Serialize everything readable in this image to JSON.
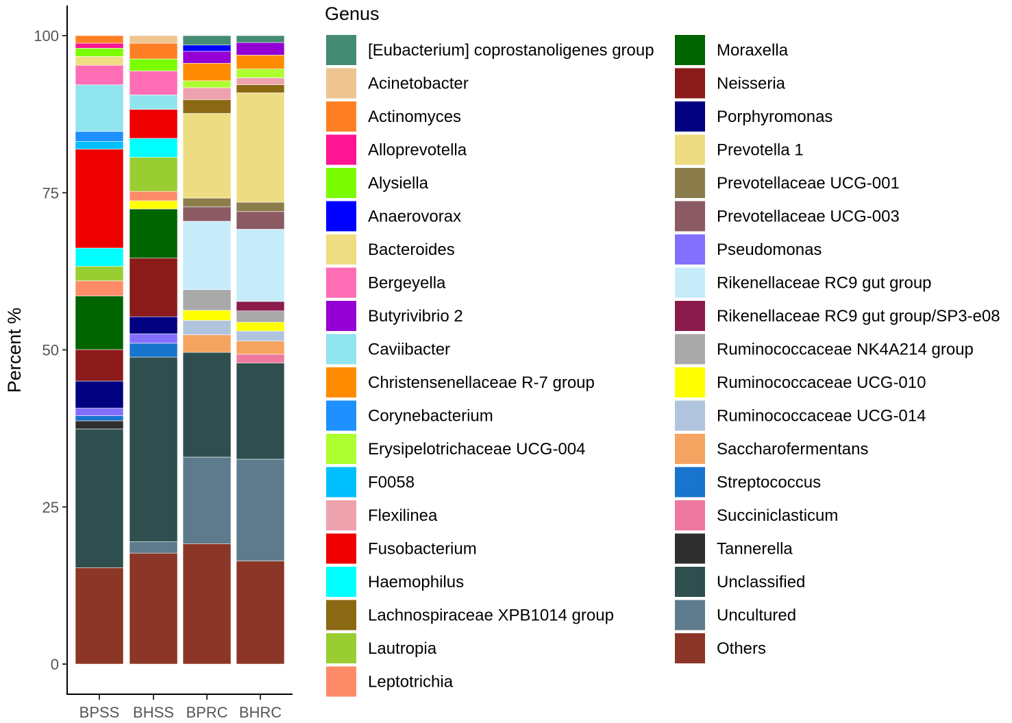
{
  "chart_data": {
    "type": "bar",
    "stacked": true,
    "title": "",
    "xlabel": "",
    "ylabel": "Percent %",
    "ylim": [
      0,
      100
    ],
    "yticks": [
      0,
      25,
      50,
      75,
      100
    ],
    "categories": [
      "BPSS",
      "BHSS",
      "BPRC",
      "BHRC"
    ],
    "legend_title": "Genus",
    "legend_position": "right",
    "grid": false,
    "series": [
      {
        "name": "Others",
        "color": "#8B3626",
        "values": [
          15.3,
          17.6,
          19.2,
          16.4
        ]
      },
      {
        "name": "Uncultured",
        "color": "#5D7B8D",
        "values": [
          0,
          1.8,
          13.8,
          16.2
        ]
      },
      {
        "name": "Unclassified",
        "color": "#2F4F4F",
        "values": [
          22.0,
          29.3,
          16.7,
          15.3
        ]
      },
      {
        "name": "Tannerella",
        "color": "#2E2E2E",
        "values": [
          1.3,
          0,
          0,
          0
        ]
      },
      {
        "name": "Streptococcus",
        "color": "#1874CD",
        "values": [
          0.8,
          2.2,
          0,
          0
        ]
      },
      {
        "name": "Pseudomonas",
        "color": "#8470FF",
        "values": [
          1.2,
          1.5,
          0,
          0
        ]
      },
      {
        "name": "Porphyromonas",
        "color": "#000080",
        "values": [
          4.3,
          2.7,
          0,
          0
        ]
      },
      {
        "name": "Neisseria",
        "color": "#8B1A1A",
        "values": [
          5.0,
          9.3,
          0,
          0
        ]
      },
      {
        "name": "Moraxella",
        "color": "#006400",
        "values": [
          8.5,
          7.8,
          0,
          0
        ]
      },
      {
        "name": "Succiniclasticum",
        "color": "#EE799F",
        "values": [
          0,
          0,
          0,
          1.4
        ]
      },
      {
        "name": "Saccharofermentans",
        "color": "#F4A460",
        "values": [
          0,
          0,
          2.8,
          2.1
        ]
      },
      {
        "name": "Ruminococcaceae UCG-014",
        "color": "#B0C4DE",
        "values": [
          0,
          0,
          2.3,
          1.6
        ]
      },
      {
        "name": "Ruminococcaceae UCG-010",
        "color": "#FFFF00",
        "values": [
          0,
          1.3,
          1.6,
          1.4
        ]
      },
      {
        "name": "Ruminococcaceae NK4A214 group",
        "color": "#A9A9A9",
        "values": [
          0,
          0,
          3.3,
          1.8
        ]
      },
      {
        "name": "Rikenellaceae RC9 gut group/SP3-e08",
        "color": "#8B1C4C",
        "values": [
          0,
          0,
          0,
          1.5
        ]
      },
      {
        "name": "Rikenellaceae RC9 gut group",
        "color": "#C6ECFA",
        "values": [
          0,
          0,
          10.9,
          11.5
        ]
      },
      {
        "name": "Prevotellaceae UCG-003",
        "color": "#8B5A62",
        "values": [
          0,
          0,
          2.3,
          2.8
        ]
      },
      {
        "name": "Prevotellaceae UCG-001",
        "color": "#8B7D4B",
        "values": [
          0,
          0,
          1.4,
          1.5
        ]
      },
      {
        "name": "Prevotella 1",
        "color": "#EEDC82",
        "values": [
          0,
          0,
          13.5,
          17.4
        ]
      },
      {
        "name": "Leptotrichia",
        "color": "#FF8C69",
        "values": [
          2.4,
          1.5,
          0,
          0
        ]
      },
      {
        "name": "Lautropia",
        "color": "#9ACD32",
        "values": [
          2.3,
          5.4,
          0,
          0
        ]
      },
      {
        "name": "Lachnospiraceae XPB1014 group",
        "color": "#8B6914",
        "values": [
          0,
          0,
          2.2,
          1.3
        ]
      },
      {
        "name": "Haemophilus",
        "color": "#00FFFF",
        "values": [
          2.9,
          3.0,
          0,
          0
        ]
      },
      {
        "name": "Fusobacterium",
        "color": "#EE0000",
        "values": [
          15.7,
          4.6,
          0,
          0
        ]
      },
      {
        "name": "Flexilinea",
        "color": "#EEA2AD",
        "values": [
          0,
          0,
          1.9,
          1.1
        ]
      },
      {
        "name": "F0058",
        "color": "#00BFFF",
        "values": [
          1.2,
          0,
          0,
          0
        ]
      },
      {
        "name": "Corynebacterium",
        "color": "#1E90FF",
        "values": [
          1.6,
          0,
          0,
          0
        ]
      },
      {
        "name": "Caviibacter",
        "color": "#90E4EE",
        "values": [
          7.4,
          2.3,
          0,
          0
        ]
      },
      {
        "name": "Erysipelotrichaceae UCG-004",
        "color": "#ADFF2F",
        "values": [
          0,
          0,
          1.1,
          1.4
        ]
      },
      {
        "name": "Christensenellaceae R-7 group",
        "color": "#FF8C00",
        "values": [
          0,
          0,
          2.8,
          2.2
        ]
      },
      {
        "name": "Butyrivibrio 2",
        "color": "#9400D3",
        "values": [
          0,
          0,
          1.9,
          2.0
        ]
      },
      {
        "name": "Bergeyella",
        "color": "#FF6EB4",
        "values": [
          3.1,
          3.8,
          0,
          0
        ]
      },
      {
        "name": "Bacteroides",
        "color": "#EEDD82",
        "values": [
          1.4,
          0,
          0,
          0
        ]
      },
      {
        "name": "Anaerovorax",
        "color": "#0000FF",
        "values": [
          0,
          0,
          1.0,
          0
        ]
      },
      {
        "name": "Alysiella",
        "color": "#7CFC00",
        "values": [
          1.3,
          1.9,
          0,
          0
        ]
      },
      {
        "name": "Alloprevotella",
        "color": "#FF1493",
        "values": [
          0.8,
          0,
          0,
          0
        ]
      },
      {
        "name": "Actinomyces",
        "color": "#FF7F24",
        "values": [
          1.2,
          2.5,
          0,
          0
        ]
      },
      {
        "name": "Acinetobacter",
        "color": "#EEC591",
        "values": [
          0,
          1.2,
          0,
          0
        ]
      },
      {
        "name": "[Eubacterium] coprostanoligenes group",
        "color": "#458B74",
        "values": [
          0,
          0,
          1.5,
          1.1
        ]
      }
    ],
    "legend_columns": [
      [
        "[Eubacterium] coprostanoligenes group",
        "Acinetobacter",
        "Actinomyces",
        "Alloprevotella",
        "Alysiella",
        "Anaerovorax",
        "Bacteroides",
        "Bergeyella",
        "Butyrivibrio 2",
        "Caviibacter",
        "Christensenellaceae R-7 group",
        "Corynebacterium",
        "Erysipelotrichaceae UCG-004",
        "F0058",
        "Flexilinea",
        "Fusobacterium",
        "Haemophilus",
        "Lachnospiraceae XPB1014 group",
        "Lautropia",
        "Leptotrichia"
      ],
      [
        "Moraxella",
        "Neisseria",
        "Porphyromonas",
        "Prevotella 1",
        "Prevotellaceae UCG-001",
        "Prevotellaceae UCG-003",
        "Pseudomonas",
        "Rikenellaceae RC9 gut group",
        "Rikenellaceae RC9 gut group/SP3-e08",
        "Ruminococcaceae NK4A214 group",
        "Ruminococcaceae UCG-010",
        "Ruminococcaceae UCG-014",
        "Saccharofermentans",
        "Streptococcus",
        "Succiniclasticum",
        "Tannerella",
        "Unclassified",
        "Uncultured",
        "Others"
      ]
    ]
  }
}
